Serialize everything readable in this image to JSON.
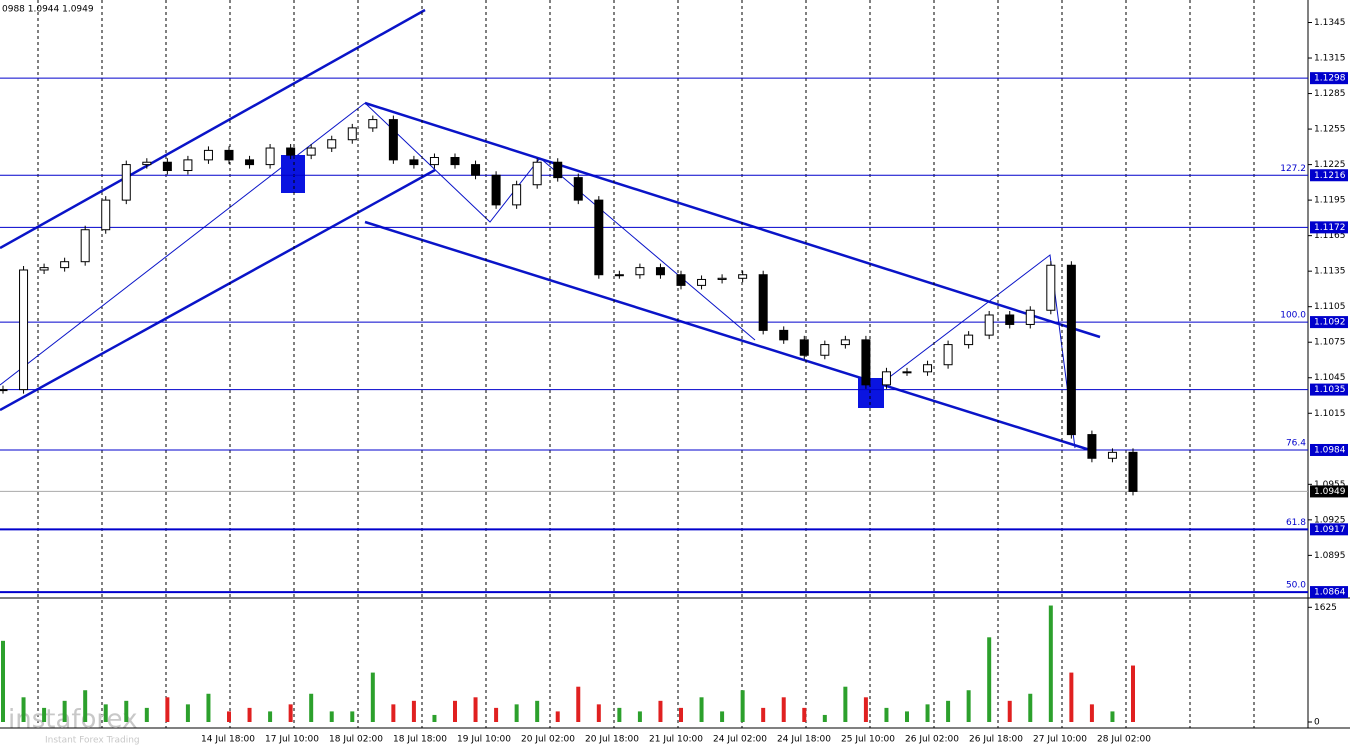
{
  "chart_data": {
    "type": "candlestick",
    "header": "0988 1.0944 1.0949",
    "watermark": "instaforex",
    "watermark_sub": "Instant Forex Trading",
    "ylim": [
      1.0859,
      1.1364
    ],
    "yticks": [
      1.1345,
      1.1315,
      1.1285,
      1.1255,
      1.1225,
      1.1195,
      1.1165,
      1.1135,
      1.1105,
      1.1075,
      1.1045,
      1.1015,
      1.0955,
      1.0925,
      1.0895
    ],
    "x_labels": [
      "14 Jul 18:00",
      "17 Jul 10:00",
      "18 Jul 02:00",
      "18 Jul 18:00",
      "19 Jul 10:00",
      "20 Jul 02:00",
      "20 Jul 18:00",
      "21 Jul 10:00",
      "24 Jul 02:00",
      "24 Jul 18:00",
      "25 Jul 10:00",
      "26 Jul 02:00",
      "26 Jul 18:00",
      "27 Jul 10:00",
      "28 Jul 02:00"
    ],
    "close": [
      1.1035,
      1.1136,
      1.1138,
      1.1143,
      1.117,
      1.1195,
      1.1225,
      1.1227,
      1.122,
      1.1229,
      1.1237,
      1.1229,
      1.1225,
      1.1239,
      1.1233,
      1.1239,
      1.1246,
      1.1256,
      1.1263,
      1.1229,
      1.1225,
      1.1231,
      1.1225,
      1.1216,
      1.1191,
      1.1208,
      1.1227,
      1.1214,
      1.1195,
      1.1132,
      1.1132,
      1.1138,
      1.1132,
      1.1123,
      1.1128,
      1.1129,
      1.1132,
      1.1085,
      1.1077,
      1.1064,
      1.1073,
      1.1077,
      1.1039,
      1.105,
      1.105,
      1.1056,
      1.1073,
      1.1081,
      1.1098,
      1.109,
      1.1102,
      1.114,
      1.0997,
      1.0977,
      1.0982,
      1.0949
    ],
    "volume": [
      1150,
      350,
      200,
      300,
      450,
      250,
      300,
      200,
      350,
      250,
      400,
      150,
      200,
      150,
      250,
      400,
      150,
      150,
      700,
      250,
      300,
      100,
      300,
      350,
      200,
      250,
      300,
      150,
      500,
      250,
      200,
      150,
      300,
      200,
      350,
      150,
      450,
      200,
      350,
      200,
      100,
      500,
      350,
      200,
      150,
      250,
      300,
      450,
      1200,
      300,
      400,
      1650,
      700,
      250,
      150,
      800
    ],
    "volume_ylim": [
      0,
      1700
    ],
    "volume_yticks": [
      1625,
      0
    ],
    "up_color": "#2ca02c",
    "down_color": "#e02020",
    "level_color": "#0000cc",
    "current_color": "#aaaaaa",
    "levels": [
      {
        "value": 1.1298
      },
      {
        "value": 1.1216,
        "fib": "127.2"
      },
      {
        "value": 1.1172
      },
      {
        "value": 1.1092,
        "fib": "100.0"
      },
      {
        "value": 1.1035
      },
      {
        "value": 1.0984,
        "fib": "76.4"
      },
      {
        "value": 1.0917,
        "fib": "61.8",
        "thick": true
      },
      {
        "value": 1.0864,
        "fib": "50.0",
        "thick": true
      }
    ],
    "current": 1.0949
  }
}
